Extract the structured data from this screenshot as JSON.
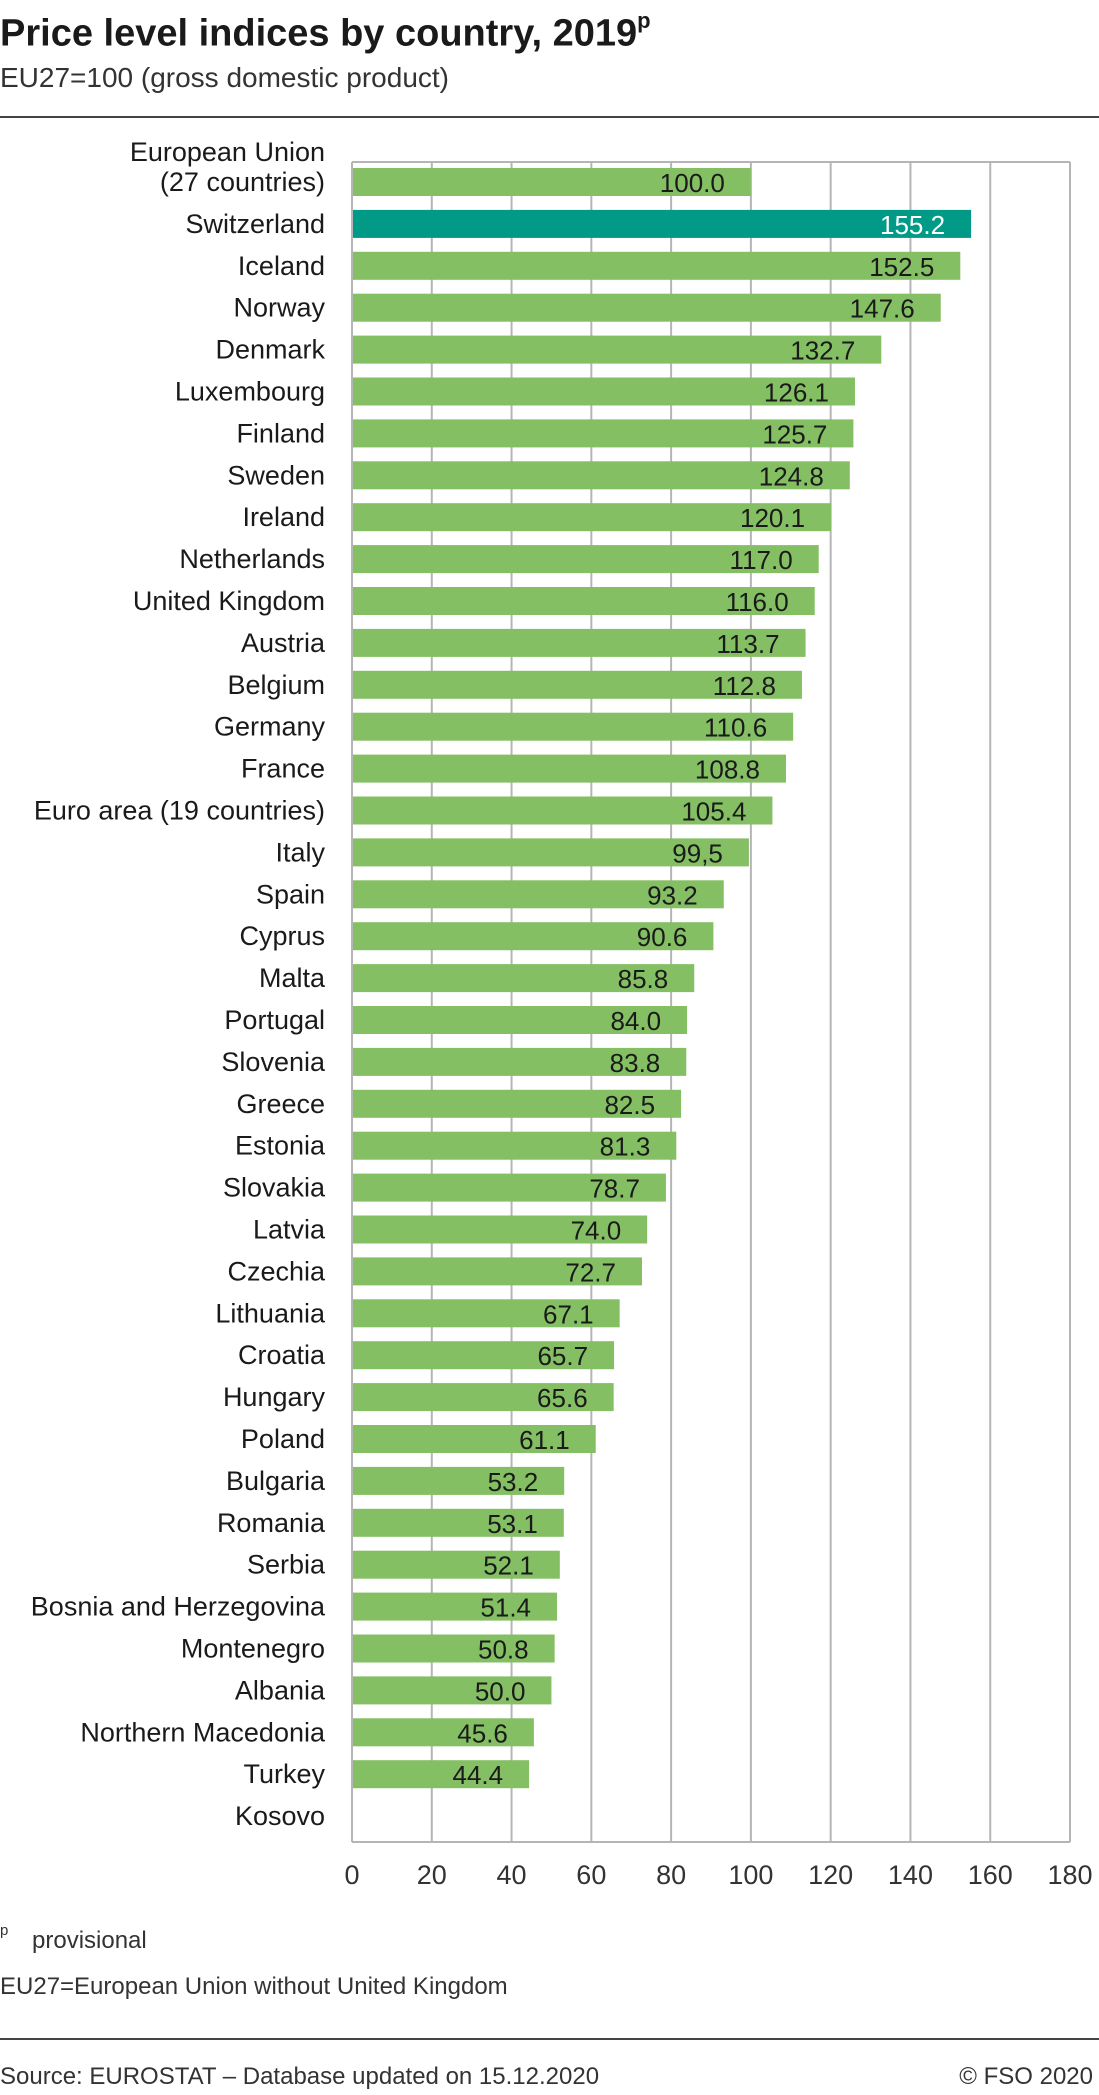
{
  "header": {
    "title": "Price level indices by country, 2019",
    "title_sup": "p",
    "subtitle": "EU27=100 (gross domestic product)"
  },
  "colors": {
    "bar": "#84bf63",
    "highlight": "#009a86",
    "grid": "#b5b5b5",
    "text": "#1a1a1a",
    "highlight_label": "#ffffff"
  },
  "chart_data": {
    "type": "bar",
    "orientation": "horizontal",
    "title": "Price level indices by country, 2019",
    "subtitle": "EU27=100 (gross domestic product)",
    "xlim": [
      0,
      180
    ],
    "xticks": [
      0,
      20,
      40,
      60,
      80,
      100,
      120,
      140,
      160,
      180
    ],
    "grid": true,
    "highlight": "Switzerland",
    "categories": [
      "European Union\n(27 countries)",
      "Switzerland",
      "Iceland",
      "Norway",
      "Denmark",
      "Luxembourg",
      "Finland",
      "Sweden",
      "Ireland",
      "Netherlands",
      "United Kingdom",
      "Austria",
      "Belgium",
      "Germany",
      "France",
      "Euro area (19 countries)",
      "Italy",
      "Spain",
      "Cyprus",
      "Malta",
      "Portugal",
      "Slovenia",
      "Greece",
      "Estonia",
      "Slovakia",
      "Latvia",
      "Czechia",
      "Lithuania",
      "Croatia",
      "Hungary",
      "Poland",
      "Bulgaria",
      "Romania",
      "Serbia",
      "Bosnia and Herzegovina",
      "Montenegro",
      "Albania",
      "Northern Macedonia",
      "Turkey",
      "Kosovo"
    ],
    "values": [
      100.0,
      155.2,
      152.5,
      147.6,
      132.7,
      126.1,
      125.7,
      124.8,
      120.1,
      117.0,
      116.0,
      113.7,
      112.8,
      110.6,
      108.8,
      105.4,
      99.5,
      93.2,
      90.6,
      85.8,
      84.0,
      83.8,
      82.5,
      81.3,
      78.7,
      74.0,
      72.7,
      67.1,
      65.7,
      65.6,
      61.1,
      53.2,
      53.1,
      52.1,
      51.4,
      50.8,
      50.0,
      45.6,
      44.4,
      null
    ],
    "value_labels": [
      "100.0",
      "155.2",
      "152.5",
      "147.6",
      "132.7",
      "126.1",
      "125.7",
      "124.8",
      "120.1",
      "117.0",
      "116.0",
      "113.7",
      "112.8",
      "110.6",
      "108.8",
      "105.4",
      "99,5",
      "93.2",
      "90.6",
      "85.8",
      "84.0",
      "83.8",
      "82.5",
      "81.3",
      "78.7",
      "74.0",
      "72.7",
      "67.1",
      "65.7",
      "65.6",
      "61.1",
      "53.2",
      "53.1",
      "52.1",
      "51.4",
      "50.8",
      "50.0",
      "45.6",
      "44.4",
      ""
    ]
  },
  "footnotes": {
    "p_marker": "p",
    "p_text": "provisional",
    "eu27_note": "EU27=European Union without United Kingdom"
  },
  "footer": {
    "source": "Source: EUROSTAT – Database updated on 15.12.2020",
    "copyright": "© FSO 2020"
  }
}
